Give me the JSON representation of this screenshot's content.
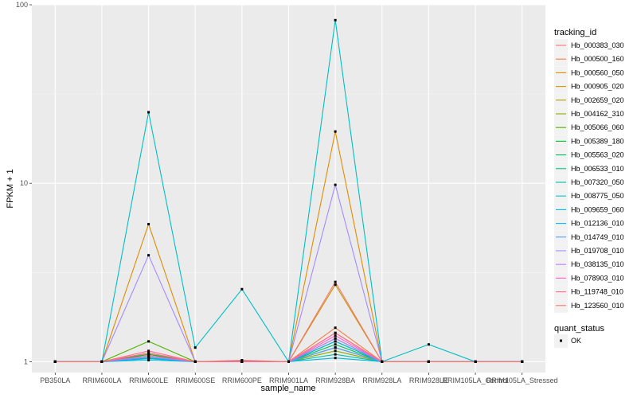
{
  "chart_data": {
    "type": "line",
    "xlabel": "sample_name",
    "ylabel": "FPKM + 1",
    "y_scale": "log10",
    "ylim": [
      0.87,
      100
    ],
    "y_ticks": [
      {
        "value": 1,
        "label": "1"
      },
      {
        "value": 10,
        "label": "10"
      },
      {
        "value": 100,
        "label": "100"
      }
    ],
    "categories": [
      "PB350LA",
      "RRIM600LA",
      "RRIM600LE",
      "RRIM600SE",
      "RRIM600PE",
      "RRIM901LA",
      "RRIM928BA",
      "RRIM928LA",
      "RRIM928LE",
      "RRIM105LA_Control",
      "RRIM105LA_Stressed"
    ],
    "legend_title": "tracking_id",
    "legend_position": "right",
    "grid": true,
    "series": [
      {
        "name": "Hb_000383_030",
        "color": "#F8766D",
        "values": [
          1,
          1,
          1.05,
          1,
          1,
          1,
          1.45,
          1,
          1,
          1,
          1
        ]
      },
      {
        "name": "Hb_000500_160",
        "color": "#EE8043",
        "values": [
          1,
          1,
          1.1,
          1,
          1.01,
          1,
          1.55,
          1,
          1,
          1,
          1
        ]
      },
      {
        "name": "Hb_000560_050",
        "color": "#DF8C00",
        "values": [
          1,
          1,
          5.9,
          1,
          1,
          1,
          19.5,
          1,
          1,
          1,
          1
        ]
      },
      {
        "name": "Hb_000905_020",
        "color": "#CA9700",
        "values": [
          1,
          1,
          1.1,
          1,
          1,
          1,
          2.7,
          1,
          1,
          1,
          1
        ]
      },
      {
        "name": "Hb_002659_020",
        "color": "#AEA200",
        "values": [
          1,
          1,
          1.05,
          1,
          1,
          1,
          1.2,
          1,
          1,
          1,
          1
        ]
      },
      {
        "name": "Hb_004162_310",
        "color": "#8BAB00",
        "values": [
          1,
          1,
          1.08,
          1,
          1,
          1,
          1.15,
          1,
          1,
          1,
          1
        ]
      },
      {
        "name": "Hb_005066_060",
        "color": "#53B400",
        "values": [
          1,
          1,
          1.3,
          1,
          1,
          1,
          1.3,
          1,
          1,
          1,
          1
        ]
      },
      {
        "name": "Hb_005389_180",
        "color": "#00B938",
        "values": [
          1,
          1,
          1.1,
          1,
          1,
          1,
          1.35,
          1,
          1,
          1,
          1
        ]
      },
      {
        "name": "Hb_005563_020",
        "color": "#00BD5C",
        "values": [
          1,
          1,
          1.05,
          1,
          1,
          1,
          1.25,
          1,
          1,
          1,
          1
        ]
      },
      {
        "name": "Hb_006533_010",
        "color": "#00C085",
        "values": [
          1,
          1,
          1.06,
          1,
          1,
          1,
          1.2,
          1,
          1,
          1,
          1
        ]
      },
      {
        "name": "Hb_007320_050",
        "color": "#00C1AA",
        "values": [
          1,
          1,
          1.04,
          1,
          1,
          1,
          1.1,
          1,
          1,
          1,
          1
        ]
      },
      {
        "name": "Hb_008775_050",
        "color": "#00BFC4",
        "values": [
          1,
          1,
          25,
          1.2,
          2.55,
          1,
          82,
          1,
          1.25,
          1,
          1
        ]
      },
      {
        "name": "Hb_009659_060",
        "color": "#00BBDB",
        "values": [
          1,
          1,
          1.02,
          1,
          1,
          1,
          1.05,
          1,
          1,
          1,
          1
        ]
      },
      {
        "name": "Hb_012136_010",
        "color": "#00B4EF",
        "values": [
          1,
          1,
          1.04,
          1,
          1,
          1,
          1.3,
          1,
          1,
          1,
          1
        ]
      },
      {
        "name": "Hb_014749_010",
        "color": "#619CFF",
        "values": [
          1,
          1,
          1.06,
          1,
          1,
          1,
          1.2,
          1,
          1,
          1,
          1
        ]
      },
      {
        "name": "Hb_019708_010",
        "color": "#A58AFF",
        "values": [
          1,
          1,
          3.95,
          1,
          1,
          1,
          9.8,
          1,
          1,
          1,
          1
        ]
      },
      {
        "name": "Hb_038135_010",
        "color": "#C77CFF",
        "values": [
          1,
          1,
          1.12,
          1,
          1,
          1,
          1.35,
          1,
          1,
          1,
          1
        ]
      },
      {
        "name": "Hb_078903_010",
        "color": "#FF61C3",
        "values": [
          1,
          1,
          1.08,
          1,
          1,
          1,
          1.4,
          1,
          1,
          1,
          1
        ]
      },
      {
        "name": "Hb_119748_010",
        "color": "#FF6C91",
        "values": [
          1,
          1,
          1.15,
          1,
          1,
          1,
          1.45,
          1,
          1,
          1,
          1
        ]
      },
      {
        "name": "Hb_123560_010",
        "color": "#F8766D",
        "values": [
          1,
          1,
          1.12,
          1,
          1.02,
          1,
          2.8,
          1,
          1,
          1,
          1
        ]
      }
    ],
    "shape_legend": {
      "title": "quant_status",
      "items": [
        "OK"
      ]
    }
  }
}
